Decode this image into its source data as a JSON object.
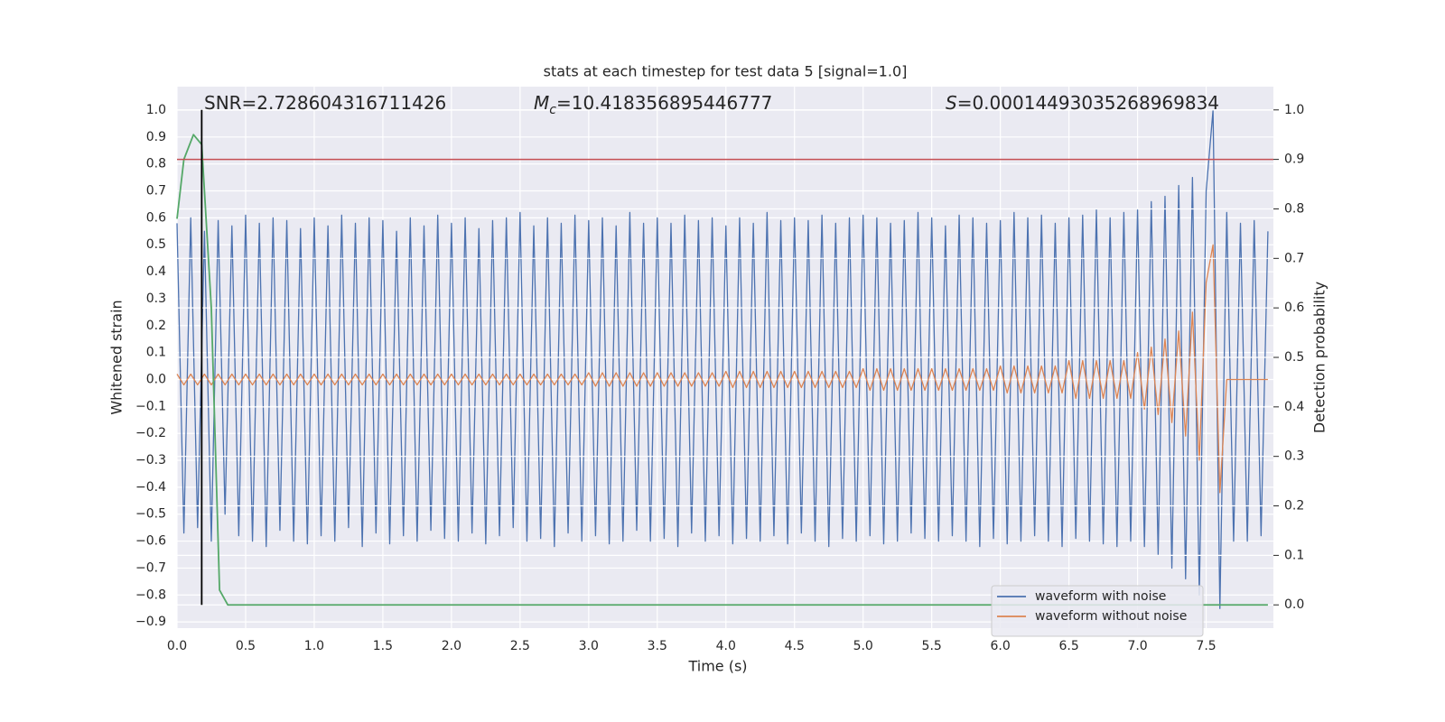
{
  "chart_data": {
    "type": "line",
    "title": "stats at each timestep for test data 5 [signal=1.0]",
    "xlabel": "Time (s)",
    "ylabel": "Whitened strain",
    "y2label": "Detection probability",
    "annotations": [
      {
        "text": "SNR=2.728604316711426"
      },
      {
        "symbol": "M",
        "sub": "c",
        "text": "=10.418356895446777"
      },
      {
        "symbol": "S",
        "text": "=0.00014493035268969834"
      }
    ],
    "background": "#eaeaf2",
    "grid": true,
    "legend": "lower right",
    "xlim": [
      0,
      7.99
    ],
    "ylim": [
      -0.923,
      1.087
    ],
    "y2lim": [
      -0.047,
      1.047
    ],
    "xticks": [
      {
        "value": 0,
        "label": "0.0"
      },
      {
        "value": 0.5,
        "label": "0.5"
      },
      {
        "value": 1,
        "label": "1.0"
      },
      {
        "value": 1.5,
        "label": "1.5"
      },
      {
        "value": 2,
        "label": "2.0"
      },
      {
        "value": 2.5,
        "label": "2.5"
      },
      {
        "value": 3,
        "label": "3.0"
      },
      {
        "value": 3.5,
        "label": "3.5"
      },
      {
        "value": 4,
        "label": "4.0"
      },
      {
        "value": 4.5,
        "label": "4.5"
      },
      {
        "value": 5,
        "label": "5.0"
      },
      {
        "value": 5.5,
        "label": "5.5"
      },
      {
        "value": 6,
        "label": "6.0"
      },
      {
        "value": 6.5,
        "label": "6.5"
      },
      {
        "value": 7,
        "label": "7.0"
      },
      {
        "value": 7.5,
        "label": "7.5"
      }
    ],
    "yticks": [
      {
        "value": -0.9,
        "label": "−0.9"
      },
      {
        "value": -0.8,
        "label": "−0.8"
      },
      {
        "value": -0.7,
        "label": "−0.7"
      },
      {
        "value": -0.6,
        "label": "−0.6"
      },
      {
        "value": -0.5,
        "label": "−0.5"
      },
      {
        "value": -0.4,
        "label": "−0.4"
      },
      {
        "value": -0.3,
        "label": "−0.3"
      },
      {
        "value": -0.2,
        "label": "−0.2"
      },
      {
        "value": -0.1,
        "label": "−0.1"
      },
      {
        "value": 0,
        "label": "0.0"
      },
      {
        "value": 0.1,
        "label": "0.1"
      },
      {
        "value": 0.2,
        "label": "0.2"
      },
      {
        "value": 0.3,
        "label": "0.3"
      },
      {
        "value": 0.4,
        "label": "0.4"
      },
      {
        "value": 0.5,
        "label": "0.5"
      },
      {
        "value": 0.6,
        "label": "0.6"
      },
      {
        "value": 0.7,
        "label": "0.7"
      },
      {
        "value": 0.8,
        "label": "0.8"
      },
      {
        "value": 0.9,
        "label": "0.9"
      },
      {
        "value": 1,
        "label": "1.0"
      }
    ],
    "y2ticks": [
      {
        "value": 0,
        "label": "0.0"
      },
      {
        "value": 0.1,
        "label": "0.1"
      },
      {
        "value": 0.2,
        "label": "0.2"
      },
      {
        "value": 0.3,
        "label": "0.3"
      },
      {
        "value": 0.4,
        "label": "0.4"
      },
      {
        "value": 0.5,
        "label": "0.5"
      },
      {
        "value": 0.6,
        "label": "0.6"
      },
      {
        "value": 0.7,
        "label": "0.7"
      },
      {
        "value": 0.8,
        "label": "0.8"
      },
      {
        "value": 0.9,
        "label": "0.9"
      },
      {
        "value": 1,
        "label": "1.0"
      }
    ],
    "x": [
      0,
      0.05,
      0.1,
      0.15,
      0.2,
      0.25,
      0.3,
      0.35,
      0.4,
      0.45,
      0.5,
      0.55,
      0.6,
      0.65,
      0.7,
      0.75,
      0.8,
      0.85,
      0.9,
      0.95,
      1,
      1.05,
      1.1,
      1.15,
      1.2,
      1.25,
      1.3,
      1.35,
      1.4,
      1.45,
      1.5,
      1.55,
      1.6,
      1.65,
      1.7,
      1.75,
      1.8,
      1.85,
      1.9,
      1.95,
      2,
      2.05,
      2.1,
      2.15,
      2.2,
      2.25,
      2.3,
      2.35,
      2.4,
      2.45,
      2.5,
      2.55,
      2.6,
      2.65,
      2.7,
      2.75,
      2.8,
      2.85,
      2.9,
      2.95,
      3,
      3.05,
      3.1,
      3.15,
      3.2,
      3.25,
      3.3,
      3.35,
      3.4,
      3.45,
      3.5,
      3.55,
      3.6,
      3.65,
      3.7,
      3.75,
      3.8,
      3.85,
      3.9,
      3.95,
      4,
      4.05,
      4.1,
      4.15,
      4.2,
      4.25,
      4.3,
      4.35,
      4.4,
      4.45,
      4.5,
      4.55,
      4.6,
      4.65,
      4.7,
      4.75,
      4.8,
      4.85,
      4.9,
      4.95,
      5,
      5.05,
      5.1,
      5.15,
      5.2,
      5.25,
      5.3,
      5.35,
      5.4,
      5.45,
      5.5,
      5.55,
      5.6,
      5.65,
      5.7,
      5.75,
      5.8,
      5.85,
      5.9,
      5.95,
      6,
      6.05,
      6.1,
      6.15,
      6.2,
      6.25,
      6.3,
      6.35,
      6.4,
      6.45,
      6.5,
      6.55,
      6.6,
      6.65,
      6.7,
      6.75,
      6.8,
      6.85,
      6.9,
      6.95,
      7,
      7.05,
      7.1,
      7.15,
      7.2,
      7.25,
      7.3,
      7.35,
      7.4,
      7.45,
      7.5,
      7.55,
      7.6,
      7.65,
      7.7,
      7.75,
      7.8,
      7.85,
      7.9,
      7.95
    ],
    "series": [
      {
        "name": "waveform with noise",
        "color": "#4c72b0",
        "values": [
          0.58,
          -0.57,
          0.6,
          -0.55,
          0.55,
          -0.6,
          0.59,
          -0.5,
          0.57,
          -0.58,
          0.61,
          -0.6,
          0.58,
          -0.62,
          0.6,
          -0.56,
          0.59,
          -0.6,
          0.56,
          -0.61,
          0.6,
          -0.58,
          0.57,
          -0.6,
          0.61,
          -0.55,
          0.58,
          -0.62,
          0.6,
          -0.57,
          0.59,
          -0.61,
          0.55,
          -0.58,
          0.6,
          -0.6,
          0.57,
          -0.56,
          0.61,
          -0.59,
          0.58,
          -0.6,
          0.6,
          -0.57,
          0.56,
          -0.61,
          0.59,
          -0.58,
          0.6,
          -0.55,
          0.62,
          -0.6,
          0.57,
          -0.59,
          0.6,
          -0.62,
          0.58,
          -0.57,
          0.61,
          -0.6,
          0.59,
          -0.58,
          0.6,
          -0.61,
          0.57,
          -0.6,
          0.62,
          -0.56,
          0.58,
          -0.6,
          0.6,
          -0.59,
          0.58,
          -0.62,
          0.61,
          -0.57,
          0.59,
          -0.6,
          0.6,
          -0.58,
          0.57,
          -0.61,
          0.6,
          -0.59,
          0.58,
          -0.6,
          0.62,
          -0.58,
          0.59,
          -0.61,
          0.6,
          -0.57,
          0.59,
          -0.6,
          0.61,
          -0.62,
          0.58,
          -0.59,
          0.6,
          -0.6,
          0.61,
          -0.58,
          0.6,
          -0.61,
          0.58,
          -0.6,
          0.59,
          -0.57,
          0.62,
          -0.59,
          0.6,
          -0.6,
          0.57,
          -0.58,
          0.61,
          -0.6,
          0.6,
          -0.62,
          0.58,
          -0.59,
          0.59,
          -0.61,
          0.62,
          -0.6,
          0.6,
          -0.58,
          0.61,
          -0.6,
          0.58,
          -0.62,
          0.6,
          -0.59,
          0.61,
          -0.6,
          0.63,
          -0.61,
          0.6,
          -0.62,
          0.62,
          -0.6,
          0.63,
          -0.62,
          0.66,
          -0.65,
          0.68,
          -0.7,
          0.72,
          -0.74,
          0.75,
          -0.8,
          0.7,
          1.0,
          -0.85,
          0.62,
          -0.6,
          0.58,
          -0.6,
          0.59,
          -0.58,
          0.55
        ]
      },
      {
        "name": "waveform without noise",
        "color": "#dd8452",
        "values": [
          0.02,
          -0.02,
          0.02,
          -0.02,
          0.02,
          -0.02,
          0.02,
          -0.02,
          0.02,
          -0.02,
          0.02,
          -0.02,
          0.02,
          -0.02,
          0.02,
          -0.02,
          0.02,
          -0.02,
          0.02,
          -0.02,
          0.02,
          -0.02,
          0.02,
          -0.02,
          0.02,
          -0.02,
          0.02,
          -0.02,
          0.02,
          -0.02,
          0.02,
          -0.02,
          0.02,
          -0.02,
          0.02,
          -0.02,
          0.02,
          -0.02,
          0.02,
          -0.02,
          0.02,
          -0.02,
          0.02,
          -0.02,
          0.02,
          -0.02,
          0.02,
          -0.02,
          0.02,
          -0.02,
          0.02,
          -0.02,
          0.02,
          -0.02,
          0.02,
          -0.02,
          0.02,
          -0.02,
          0.02,
          -0.02,
          0.025,
          -0.025,
          0.025,
          -0.025,
          0.025,
          -0.025,
          0.025,
          -0.025,
          0.025,
          -0.025,
          0.025,
          -0.025,
          0.025,
          -0.025,
          0.025,
          -0.025,
          0.025,
          -0.025,
          0.025,
          -0.025,
          0.03,
          -0.03,
          0.03,
          -0.03,
          0.03,
          -0.03,
          0.03,
          -0.03,
          0.03,
          -0.03,
          0.03,
          -0.03,
          0.03,
          -0.03,
          0.03,
          -0.03,
          0.03,
          -0.03,
          0.03,
          -0.03,
          0.04,
          -0.04,
          0.04,
          -0.04,
          0.04,
          -0.04,
          0.04,
          -0.04,
          0.04,
          -0.04,
          0.04,
          -0.04,
          0.04,
          -0.04,
          0.04,
          -0.04,
          0.04,
          -0.04,
          0.04,
          -0.04,
          0.05,
          -0.05,
          0.05,
          -0.05,
          0.05,
          -0.05,
          0.05,
          -0.05,
          0.05,
          -0.05,
          0.07,
          -0.07,
          0.07,
          -0.07,
          0.07,
          -0.07,
          0.07,
          -0.07,
          0.07,
          -0.07,
          0.1,
          -0.11,
          0.12,
          -0.13,
          0.15,
          -0.16,
          0.18,
          -0.21,
          0.25,
          -0.3,
          0.36,
          0.5,
          -0.42,
          0,
          0,
          0,
          0,
          0,
          0,
          0
        ]
      },
      {
        "color": "#55a868",
        "axis": "y2",
        "x": [
          0,
          0.05,
          0.12,
          0.18,
          0.25,
          0.31,
          0.37,
          7.95
        ],
        "values": [
          0.78,
          0.9,
          0.95,
          0.93,
          0.6,
          0.03,
          0,
          0
        ]
      }
    ],
    "hlines": [
      {
        "y": 0.9,
        "axis": "y2",
        "color": "#c44e52"
      }
    ],
    "vlines": [
      {
        "x": 0.18,
        "ymin": 0,
        "ymax": 1,
        "axis": "y2",
        "color": "#000000"
      }
    ]
  }
}
